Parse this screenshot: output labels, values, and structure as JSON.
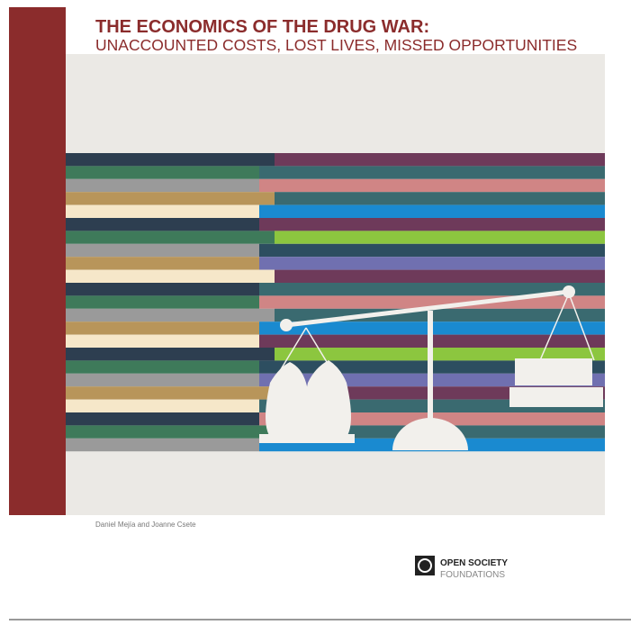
{
  "cover": {
    "title_line1": "THE ECONOMICS OF THE DRUG WAR:",
    "title_line2": "UNACCOUNTED COSTS, LOST LIVES, MISSED OPPORTUNITIES",
    "authors": "Daniel Mejía and Joanne Csete"
  },
  "logo": {
    "line1": "OPEN SOCIETY",
    "line2": "FOUNDATIONS"
  }
}
